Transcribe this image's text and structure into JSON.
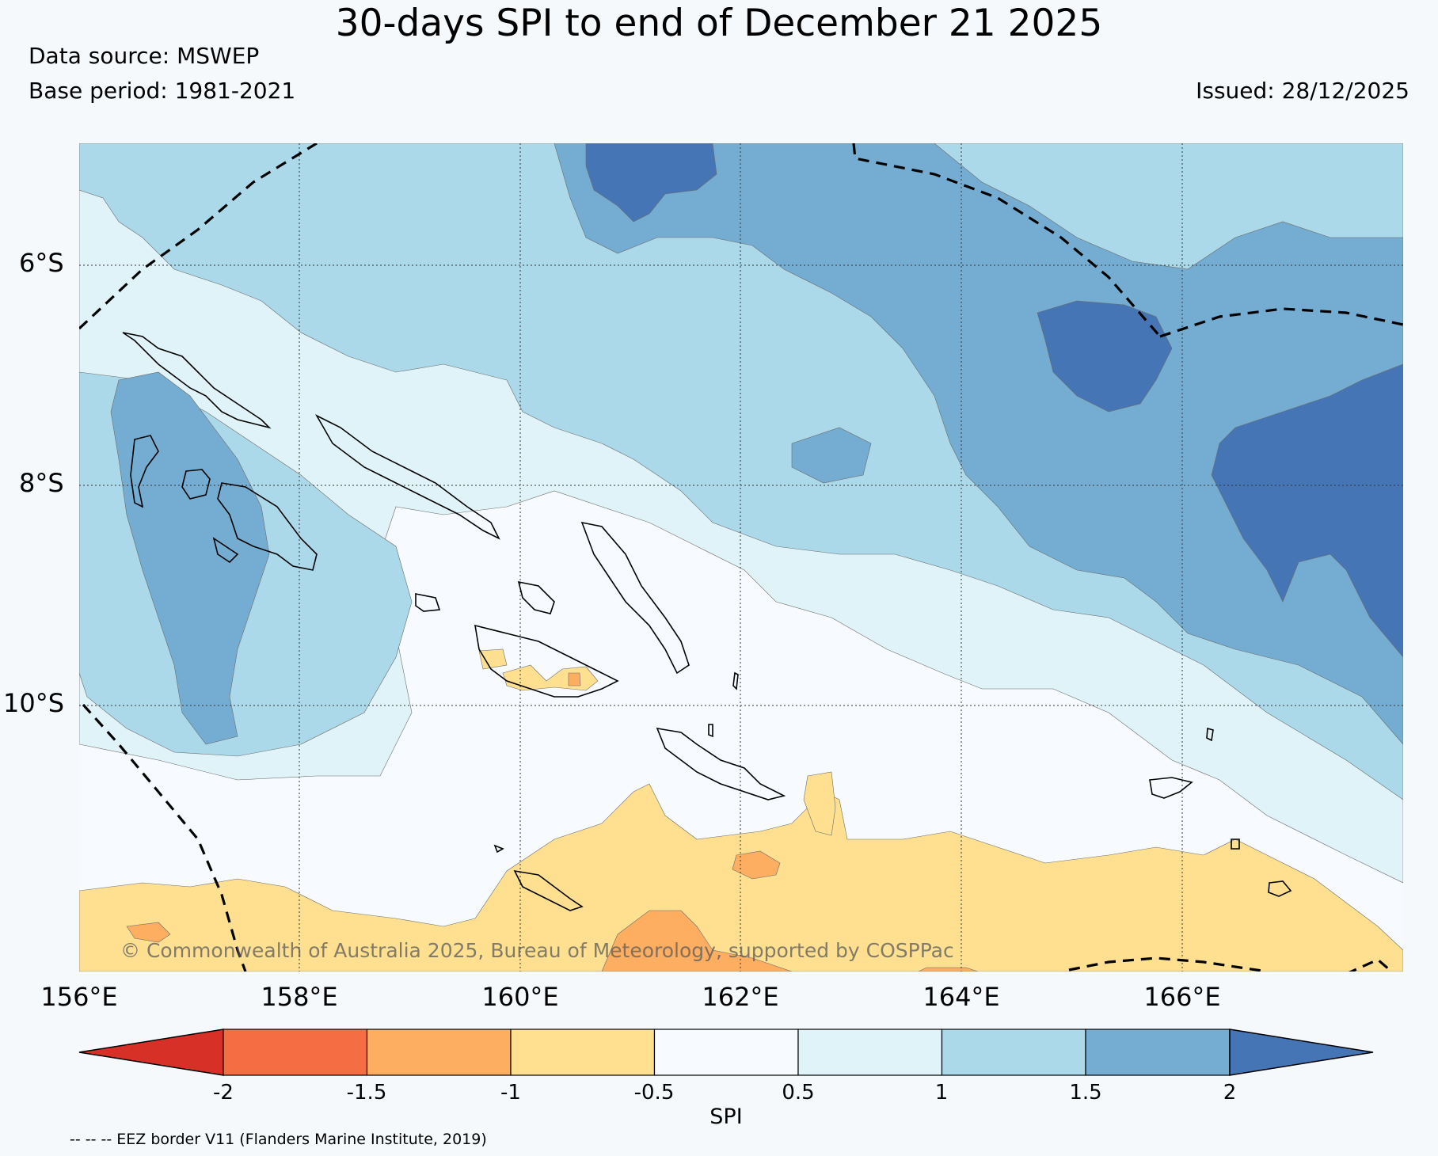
{
  "title": "30-days SPI to end of December 21 2025",
  "data_source": "Data source: MSWEP",
  "base_period": "Base period: 1981-2021",
  "issued": "Issued: 28/12/2025",
  "map": {
    "latitude_labels": [
      "6°S",
      "8°S",
      "10°S"
    ],
    "longitude_labels": [
      "156°E",
      "158°E",
      "160°E",
      "162°E",
      "164°E",
      "166°E"
    ],
    "copyright": "© Commonwealth of Australia 2025, Bureau of Meteorology, supported by COSPPac"
  },
  "colorbar": {
    "label": "SPI",
    "ticks": [
      "-2",
      "-1.5",
      "-1",
      "-0.5",
      "0.5",
      "1",
      "1.5",
      "2"
    ],
    "colors": [
      "#d73027",
      "#f46d43",
      "#fdae61",
      "#fee090",
      "#f7fbff",
      "#e0f3f8",
      "#abd9e9",
      "#74add1",
      "#4575b4"
    ]
  },
  "footnote": "-- -- -- EEZ border V11 (Flanders Marine Institute, 2019)"
}
